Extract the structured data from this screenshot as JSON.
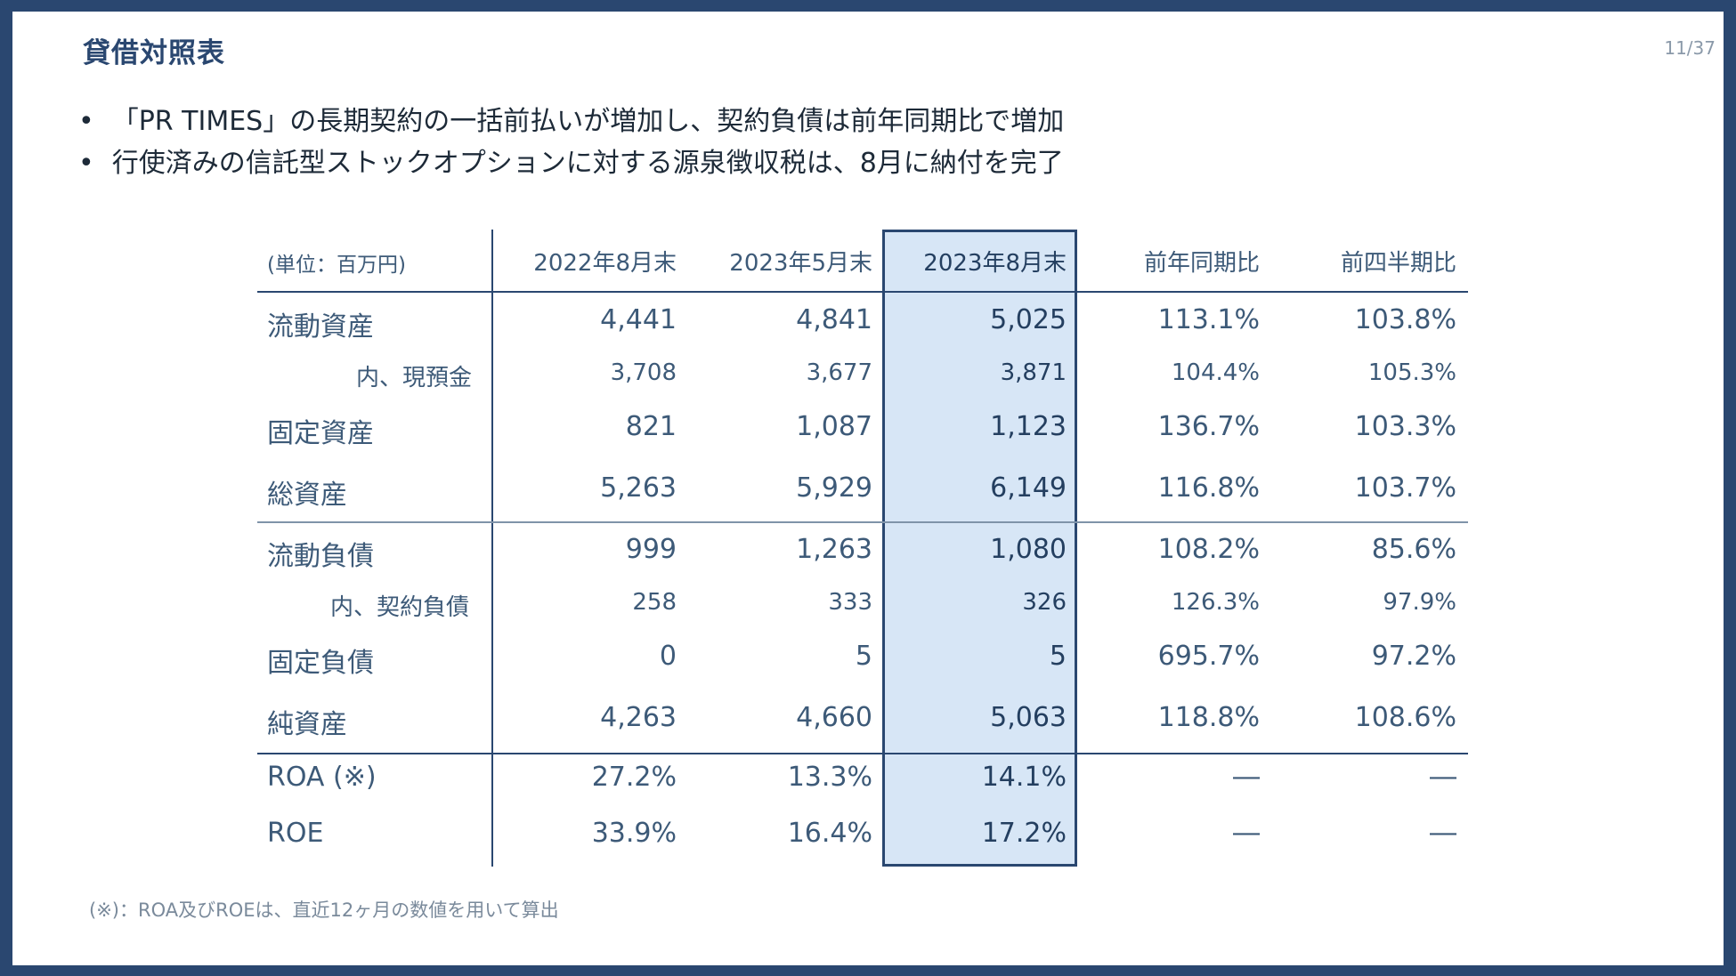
{
  "slide": {
    "title": "貸借対照表",
    "page": "11/37"
  },
  "bullets": [
    "「PR TIMES」の長期契約の一括前払いが増加し、契約負債は前年同期比で増加",
    "行使済みの信託型ストックオプションに対する源泉徴収税は、8月に納付を完了"
  ],
  "table": {
    "unit_label": "(単位：百万円)",
    "columns": [
      "2022年8月末",
      "2023年5月末",
      "2023年8月末",
      "前年同期比",
      "前四半期比"
    ],
    "rows": [
      {
        "label": "流動資産",
        "values": [
          "4,441",
          "4,841",
          "5,025",
          "113.1%",
          "103.8%"
        ]
      },
      {
        "label": "内、現預金",
        "values": [
          "3,708",
          "3,677",
          "3,871",
          "104.4%",
          "105.3%"
        ]
      },
      {
        "label": "固定資産",
        "values": [
          "821",
          "1,087",
          "1,123",
          "136.7%",
          "103.3%"
        ]
      },
      {
        "label": "総資産",
        "values": [
          "5,263",
          "5,929",
          "6,149",
          "116.8%",
          "103.7%"
        ]
      },
      {
        "label": "流動負債",
        "values": [
          "999",
          "1,263",
          "1,080",
          "108.2%",
          "85.6%"
        ]
      },
      {
        "label": "内、契約負債",
        "values": [
          "258",
          "333",
          "326",
          "126.3%",
          "97.9%"
        ]
      },
      {
        "label": "固定負債",
        "values": [
          "0",
          "5",
          "5",
          "695.7%",
          "97.2%"
        ]
      },
      {
        "label": "純資産",
        "values": [
          "4,263",
          "4,660",
          "5,063",
          "118.8%",
          "108.6%"
        ]
      },
      {
        "label": "ROA (※)",
        "values": [
          "27.2%",
          "13.3%",
          "14.1%",
          "―",
          "―"
        ]
      },
      {
        "label": "ROE",
        "values": [
          "33.9%",
          "16.4%",
          "17.2%",
          "―",
          "―"
        ]
      }
    ]
  },
  "footnote": "(※)：ROA及びROEは、直近12ヶ月の数値を用いて算出",
  "colors": {
    "frame": "#2a4770",
    "highlight_fill": "#d7e6f6",
    "text": "#3d5a78"
  }
}
